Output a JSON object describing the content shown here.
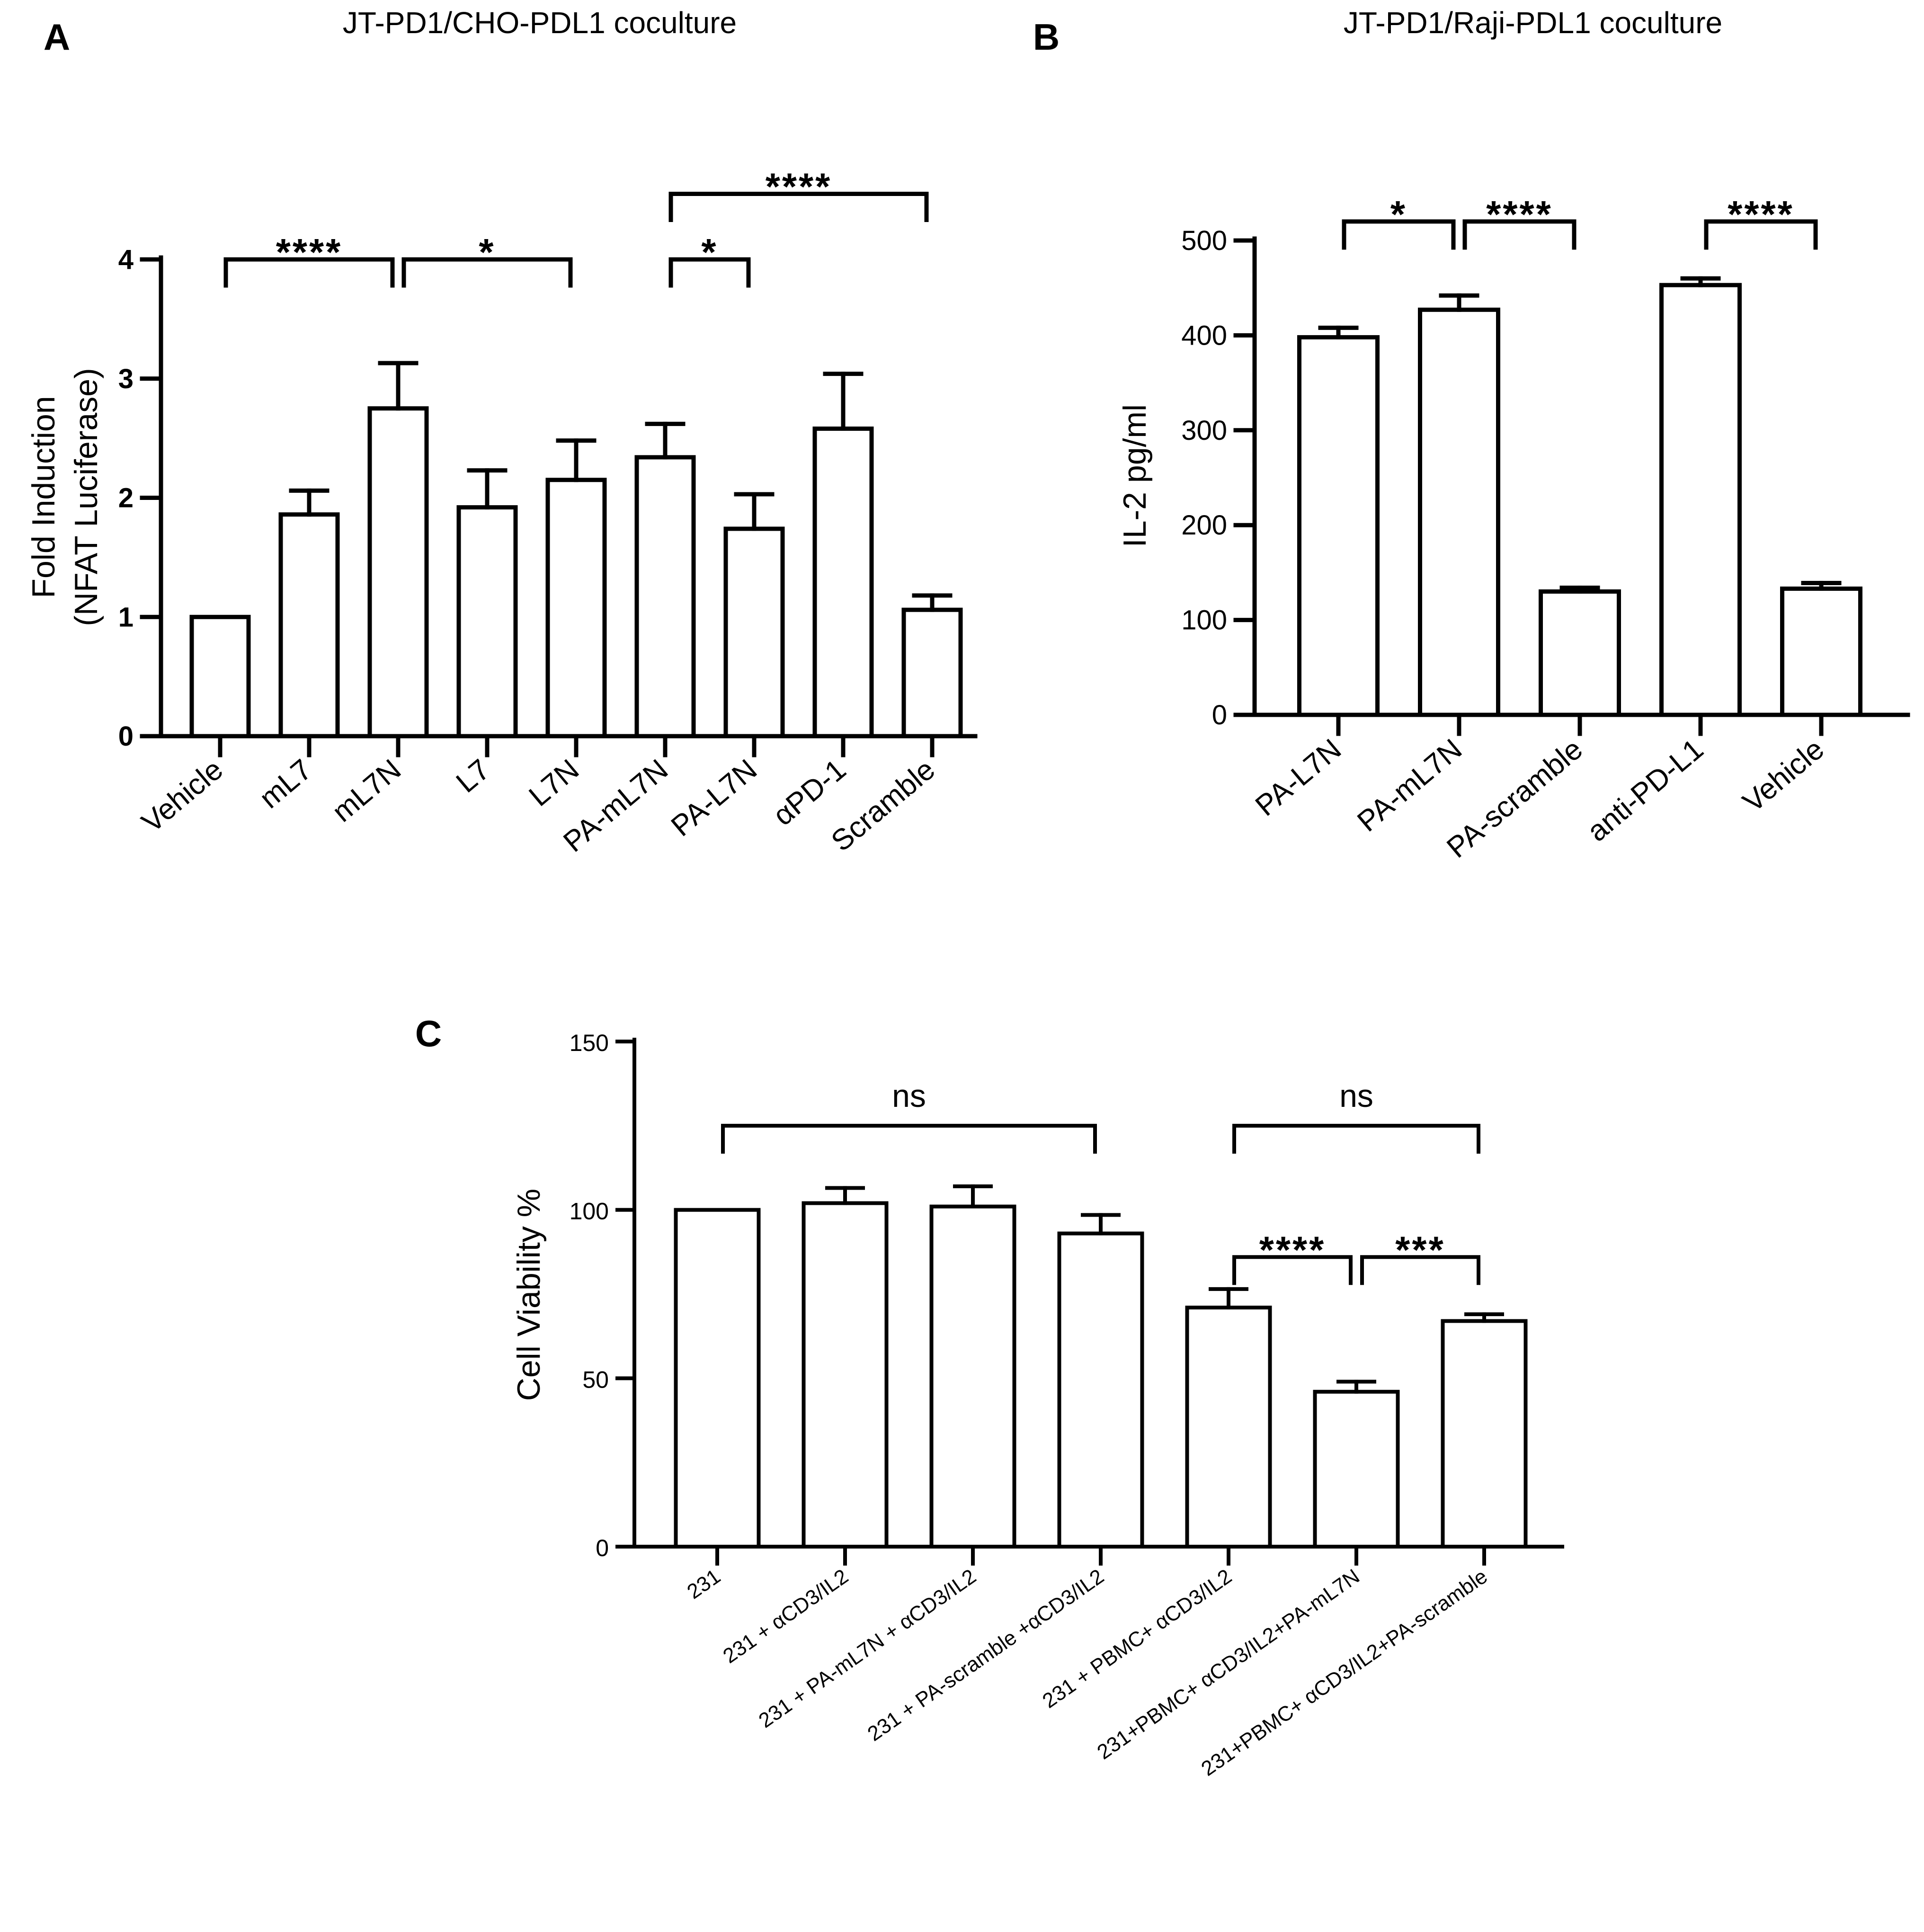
{
  "chart_data": [
    {
      "id": "A",
      "panel_letter": "A",
      "type": "bar",
      "title": "JT-PD1/CHO-PDL1 coculture",
      "ylabel": [
        "Fold Induction",
        "(NFAT Luciferase)"
      ],
      "xlabel": "",
      "ylim": [
        0,
        4
      ],
      "yticks": [
        0,
        1,
        2,
        3,
        4
      ],
      "grid": false,
      "categories": [
        "Vehicle",
        "mL7",
        "mL7N",
        "L7",
        "L7N",
        "PA-mL7N",
        "PA-L7N",
        "αPD-1",
        "Scramble"
      ],
      "values": [
        1.0,
        1.86,
        2.75,
        1.92,
        2.15,
        2.34,
        1.74,
        2.58,
        1.06
      ],
      "errors": [
        0.0,
        0.2,
        0.38,
        0.31,
        0.33,
        0.28,
        0.29,
        0.46,
        0.12
      ],
      "significance": [
        {
          "from": 0,
          "to": 2,
          "label": "****",
          "level": 4.0
        },
        {
          "from": 2,
          "to": 4,
          "label": "*",
          "level": 4.0
        },
        {
          "from": 5,
          "to": 6,
          "label": "*",
          "level": 4.0
        },
        {
          "from": 5,
          "to": 8,
          "label": "****",
          "level": 4.55
        }
      ]
    },
    {
      "id": "B",
      "panel_letter": "B",
      "type": "bar",
      "title": "JT-PD1/Raji-PDL1 coculture",
      "ylabel": [
        "IL-2 pg/ml"
      ],
      "xlabel": "",
      "ylim": [
        0,
        500
      ],
      "yticks": [
        0,
        100,
        200,
        300,
        400,
        500
      ],
      "grid": false,
      "categories": [
        "PA-L7N",
        "PA-mL7N",
        "PA-scramble",
        "anti-PD-L1",
        "Vehicle"
      ],
      "values": [
        398,
        427,
        130,
        453,
        133
      ],
      "errors": [
        10,
        15,
        4,
        7,
        6
      ],
      "significance": [
        {
          "from": 0,
          "to": 1,
          "label": "*",
          "level": 520
        },
        {
          "from": 1,
          "to": 2,
          "label": "****",
          "level": 520
        },
        {
          "from": 3,
          "to": 4,
          "label": "****",
          "level": 520
        }
      ]
    },
    {
      "id": "C",
      "panel_letter": "C",
      "type": "bar",
      "title": "",
      "ylabel": [
        "Cell Viability %"
      ],
      "xlabel": "",
      "ylim": [
        0,
        150
      ],
      "yticks": [
        0,
        50,
        100,
        150
      ],
      "grid": false,
      "categories": [
        "231",
        "231 + αCD3/IL2",
        "231 + PA-mL7N + αCD3/IL2",
        "231 + PA-scramble +αCD3/IL2",
        "231 + PBMC+ αCD3/IL2",
        "231+PBMC+ αCD3/IL2+PA-mL7N",
        "231+PBMC+ αCD3/IL2+PA-scramble"
      ],
      "values": [
        100,
        102,
        101,
        93,
        71,
        46,
        67
      ],
      "errors": [
        0,
        4.5,
        6,
        5.5,
        5.5,
        3,
        2
      ],
      "significance": [
        {
          "from": 0,
          "to": 3,
          "label": "ns",
          "level": 125
        },
        {
          "from": 4,
          "to": 6,
          "label": "ns",
          "level": 125
        },
        {
          "from": 4,
          "to": 5,
          "label": "****",
          "level": 86
        },
        {
          "from": 5,
          "to": 6,
          "label": "***",
          "level": 86
        }
      ]
    }
  ]
}
